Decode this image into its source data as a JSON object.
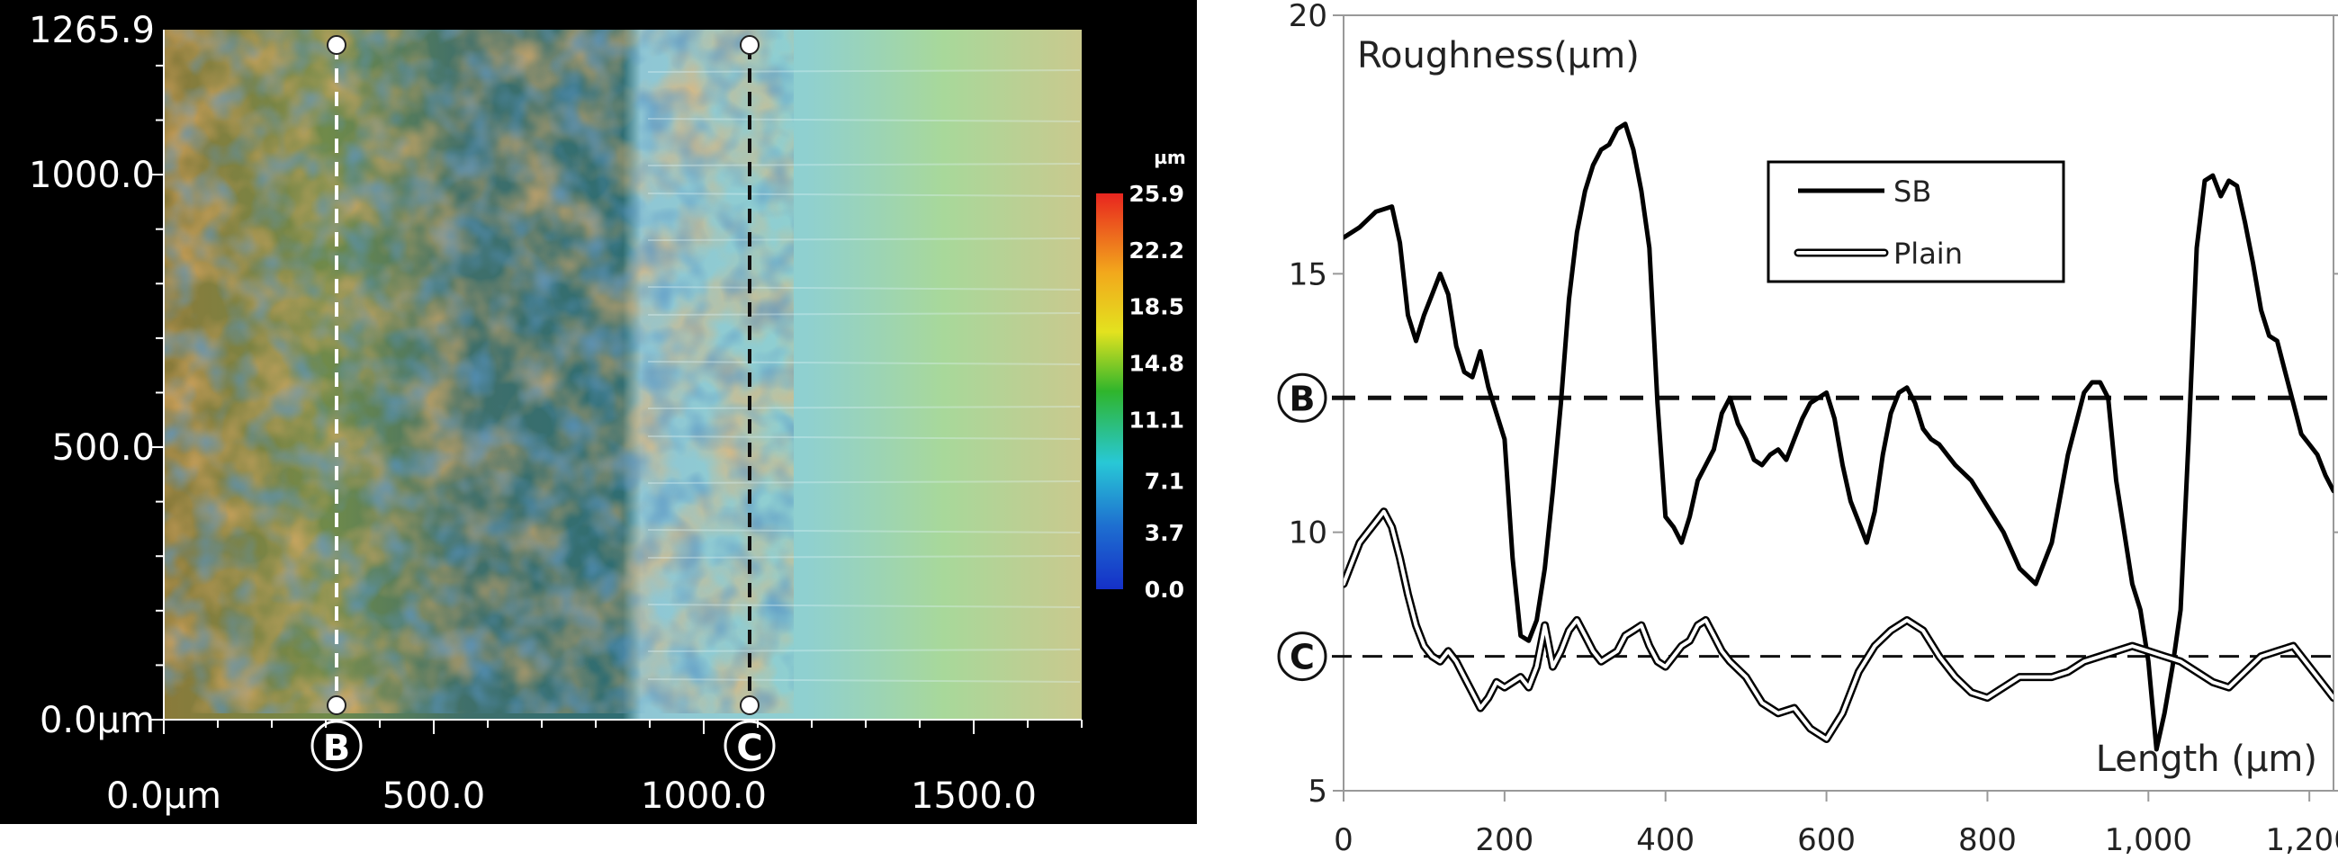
{
  "chart_data": [
    {
      "type": "heatmap",
      "title": "",
      "x_ticks": [
        "0.0µm",
        "500.0",
        "1000.0",
        "1500.0"
      ],
      "y_ticks": [
        "0.0µm",
        "500.0",
        "1000.0",
        "1265.9"
      ],
      "xlim": [
        0,
        1700
      ],
      "ylim": [
        0,
        1265.9
      ],
      "colorbar": {
        "unit": "µm",
        "ticks": [
          "25.9",
          "22.2",
          "18.5",
          "14.8",
          "11.1",
          "7.1",
          "3.7",
          "0.0"
        ],
        "range": [
          0.0,
          25.9
        ],
        "colors": [
          "#e8251f",
          "#f2a81c",
          "#e3e21f",
          "#2fb52c",
          "#28c8d6",
          "#1e6fd0",
          "#1530c8"
        ]
      },
      "profile_lines": [
        {
          "label": "B",
          "x": 320,
          "style": "dashed",
          "color": "#ffffff"
        },
        {
          "label": "C",
          "x": 1085,
          "style": "dashed",
          "color": "#111111"
        }
      ]
    },
    {
      "type": "line",
      "ylabel": "Roughness(µm)",
      "xlabel": "Length (µm)",
      "xlim": [
        0,
        1230
      ],
      "ylim": [
        5,
        20
      ],
      "x_ticks": [
        "0",
        "200",
        "400",
        "600",
        "800",
        "1,000",
        "1,200"
      ],
      "y_ticks": [
        "5",
        "10",
        "15",
        "20"
      ],
      "legend": {
        "position": "top-center"
      },
      "series": [
        {
          "name": "SB",
          "style": "solid",
          "x": [
            0,
            20,
            40,
            60,
            70,
            80,
            90,
            100,
            110,
            120,
            130,
            140,
            150,
            160,
            170,
            180,
            190,
            200,
            210,
            220,
            230,
            240,
            250,
            260,
            270,
            280,
            290,
            300,
            310,
            320,
            330,
            340,
            350,
            360,
            370,
            380,
            390,
            400,
            410,
            420,
            430,
            440,
            450,
            460,
            470,
            480,
            490,
            500,
            510,
            520,
            530,
            540,
            550,
            560,
            570,
            580,
            590,
            600,
            610,
            620,
            630,
            640,
            650,
            660,
            670,
            680,
            690,
            700,
            710,
            720,
            730,
            740,
            750,
            760,
            780,
            800,
            820,
            840,
            860,
            880,
            900,
            920,
            930,
            940,
            950,
            960,
            970,
            980,
            990,
            1000,
            1010,
            1020,
            1030,
            1040,
            1050,
            1060,
            1070,
            1080,
            1090,
            1100,
            1110,
            1120,
            1130,
            1140,
            1150,
            1160,
            1170,
            1180,
            1190,
            1200,
            1210,
            1220,
            1230
          ],
          "values": [
            15.7,
            15.9,
            16.2,
            16.3,
            15.6,
            14.2,
            13.7,
            14.2,
            14.6,
            15.0,
            14.6,
            13.6,
            13.1,
            13.0,
            13.5,
            12.8,
            12.3,
            11.8,
            9.5,
            8.0,
            7.9,
            8.3,
            9.3,
            10.8,
            12.5,
            14.5,
            15.8,
            16.6,
            17.1,
            17.4,
            17.5,
            17.8,
            17.9,
            17.4,
            16.6,
            15.5,
            12.5,
            10.3,
            10.1,
            9.8,
            10.3,
            11.0,
            11.3,
            11.6,
            12.3,
            12.6,
            12.1,
            11.8,
            11.4,
            11.3,
            11.5,
            11.6,
            11.4,
            11.8,
            12.2,
            12.5,
            12.6,
            12.7,
            12.2,
            11.3,
            10.6,
            10.2,
            9.8,
            10.4,
            11.5,
            12.3,
            12.7,
            12.8,
            12.5,
            12.0,
            11.8,
            11.7,
            11.5,
            11.3,
            11.0,
            10.5,
            10.0,
            9.3,
            9.0,
            9.8,
            11.5,
            12.7,
            12.9,
            12.9,
            12.6,
            11.0,
            10.0,
            9.0,
            8.5,
            7.5,
            5.8,
            6.5,
            7.4,
            8.5,
            11.8,
            15.5,
            16.8,
            16.9,
            16.5,
            16.8,
            16.7,
            16.0,
            15.2,
            14.3,
            13.8,
            13.7,
            13.1,
            12.5,
            11.9,
            11.7,
            11.5,
            11.1,
            10.8
          ]
        },
        {
          "name": "Plain",
          "style": "double",
          "x": [
            0,
            10,
            20,
            30,
            40,
            50,
            60,
            70,
            80,
            90,
            100,
            110,
            120,
            130,
            140,
            150,
            160,
            170,
            180,
            190,
            200,
            210,
            220,
            230,
            240,
            250,
            260,
            270,
            280,
            290,
            300,
            310,
            320,
            330,
            340,
            350,
            360,
            370,
            380,
            390,
            400,
            410,
            420,
            430,
            440,
            450,
            460,
            470,
            480,
            500,
            520,
            540,
            560,
            580,
            600,
            620,
            640,
            660,
            680,
            700,
            720,
            740,
            760,
            780,
            800,
            820,
            840,
            860,
            880,
            900,
            920,
            940,
            960,
            980,
            1000,
            1020,
            1040,
            1060,
            1080,
            1100,
            1120,
            1140,
            1160,
            1180,
            1200,
            1220,
            1230
          ],
          "values": [
            9.0,
            9.4,
            9.8,
            10.0,
            10.2,
            10.4,
            10.1,
            9.5,
            8.8,
            8.2,
            7.8,
            7.6,
            7.5,
            7.7,
            7.5,
            7.2,
            6.9,
            6.6,
            6.8,
            7.1,
            7.0,
            7.1,
            7.2,
            7.0,
            7.4,
            8.2,
            7.4,
            7.7,
            8.1,
            8.3,
            8.0,
            7.7,
            7.5,
            7.6,
            7.7,
            8.0,
            8.1,
            8.2,
            7.8,
            7.5,
            7.4,
            7.6,
            7.8,
            7.9,
            8.2,
            8.3,
            8.0,
            7.7,
            7.5,
            7.2,
            6.7,
            6.5,
            6.6,
            6.2,
            6.0,
            6.5,
            7.3,
            7.8,
            8.1,
            8.3,
            8.1,
            7.6,
            7.2,
            6.9,
            6.8,
            7.0,
            7.2,
            7.2,
            7.2,
            7.3,
            7.5,
            7.6,
            7.7,
            7.8,
            7.7,
            7.6,
            7.5,
            7.3,
            7.1,
            7.0,
            7.3,
            7.6,
            7.7,
            7.8,
            7.4,
            7.0,
            6.8
          ]
        }
      ],
      "reference_lines": [
        {
          "label": "B",
          "y": 12.6,
          "style": "dashed-bold"
        },
        {
          "label": "C",
          "y": 7.6,
          "style": "dashed-thin"
        }
      ]
    }
  ]
}
